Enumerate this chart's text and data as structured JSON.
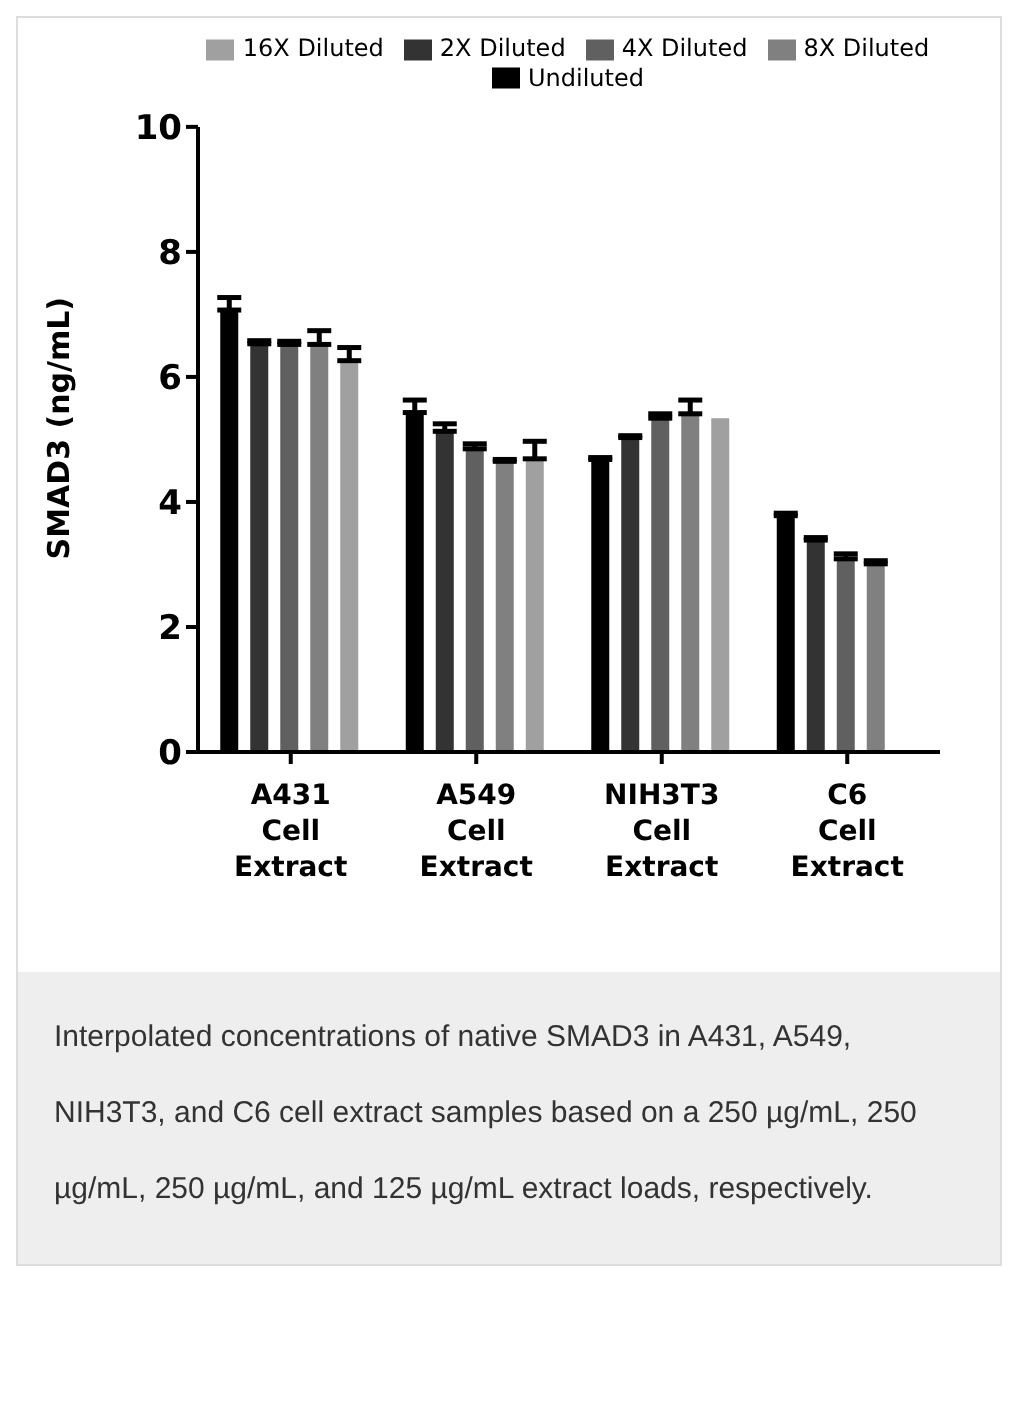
{
  "chart_data": {
    "type": "bar",
    "ylabel": "SMAD3 (ng/mL)",
    "categories": [
      "A431 Cell Extract",
      "A549 Cell Extract",
      "NIH3T3 Cell Extract",
      "C6 Cell Extract"
    ],
    "series": [
      {
        "name": "Undiluted",
        "color": "#000000",
        "values": [
          7.07,
          5.43,
          4.68,
          3.78
        ],
        "errors": [
          [
            7.07,
            7.27
          ],
          [
            5.43,
            5.63
          ],
          [
            4.68,
            4.71
          ],
          [
            3.78,
            3.82
          ]
        ]
      },
      {
        "name": "2X Diluted",
        "color": "#333333",
        "values": [
          6.53,
          5.13,
          5.03,
          3.39
        ],
        "errors": [
          [
            6.53,
            6.58
          ],
          [
            5.13,
            5.25
          ],
          [
            5.03,
            5.06
          ],
          [
            3.39,
            3.43
          ]
        ]
      },
      {
        "name": "4X Diluted",
        "color": "#606060",
        "values": [
          6.52,
          4.85,
          5.34,
          3.09
        ],
        "errors": [
          [
            6.52,
            6.57
          ],
          [
            4.85,
            4.93
          ],
          [
            5.34,
            5.41
          ],
          [
            3.09,
            3.17
          ]
        ]
      },
      {
        "name": "8X Diluted",
        "color": "#808080",
        "values": [
          6.52,
          4.65,
          5.41,
          3.01
        ],
        "errors": [
          [
            6.52,
            6.74
          ],
          [
            4.65,
            4.68
          ],
          [
            5.41,
            5.63
          ],
          [
            3.01,
            3.06
          ]
        ]
      },
      {
        "name": "16X Diluted",
        "color": "#a0a0a0",
        "values": [
          6.26,
          4.69,
          5.34,
          null
        ],
        "errors": [
          [
            6.26,
            6.47
          ],
          [
            4.69,
            4.97
          ],
          null,
          null
        ]
      }
    ],
    "ylim": [
      0,
      10
    ],
    "yticks": [
      0,
      2,
      4,
      6,
      8,
      10
    ],
    "grid": false,
    "legend": "top",
    "annotations": [
      "Interpolated concentrations of native SMAD3 in A431, A549, NIH3T3, and C6 cell extract samples based on a 250 µg/mL, 250 µg/mL, 250 µg/mL, and 125 µg/mL extract loads, respectively."
    ]
  }
}
